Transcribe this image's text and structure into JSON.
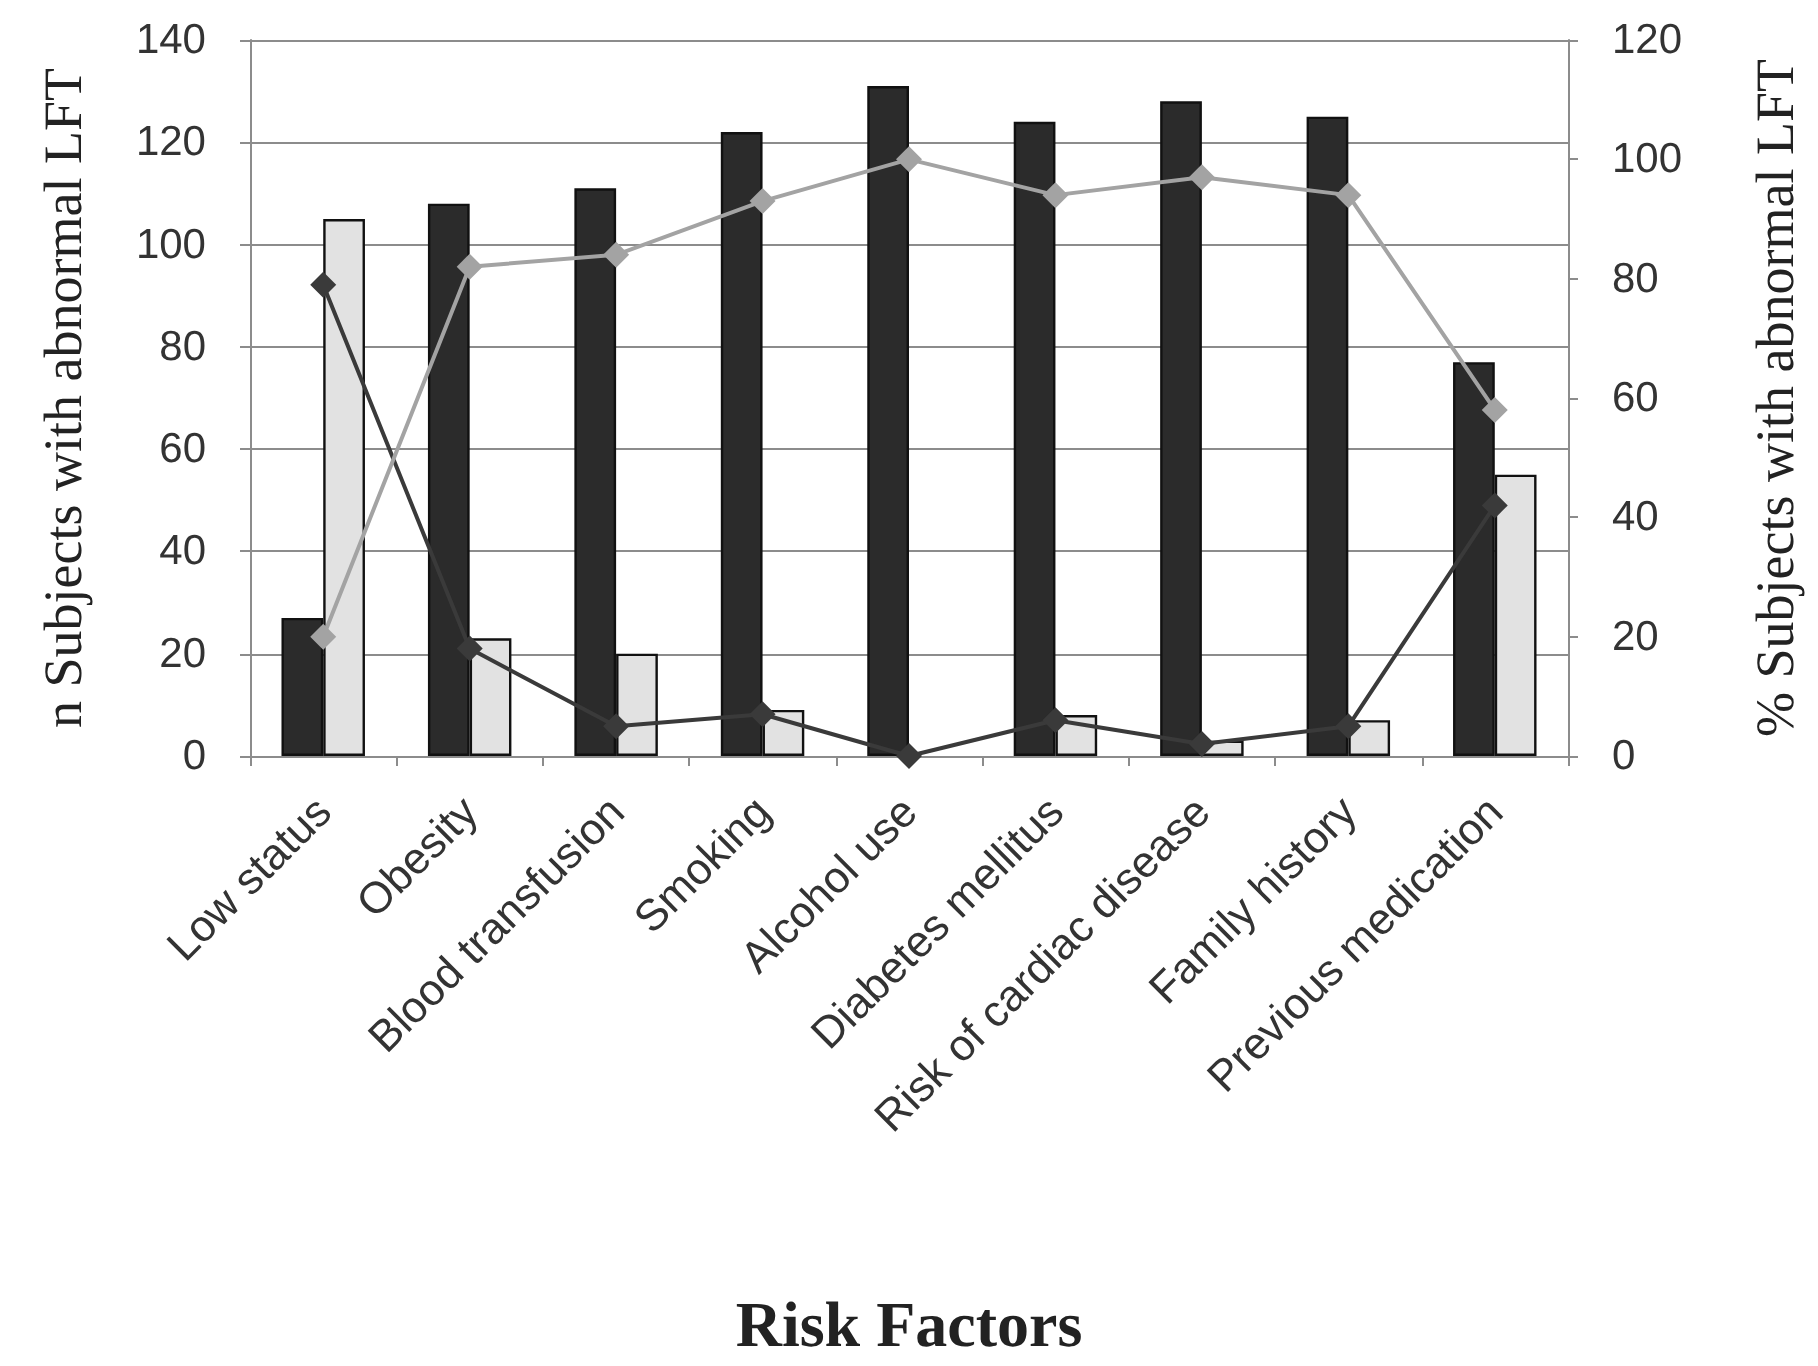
{
  "chart_data": {
    "type": "bar",
    "xlabel": "Risk Factors",
    "ylabel": "n Subjects with abnormal LFT",
    "y2label": "% Subjects with abnormal LFT",
    "categories": [
      "Low status",
      "Obesity",
      "Blood transfusion",
      "Smoking",
      "Alcohol use",
      "Diabetes mellitus",
      "Risk of cardiac disease",
      "Family history",
      "Previous medication"
    ],
    "series": [
      {
        "color": "#2b2b2b",
        "values": [
          27,
          108,
          111,
          122,
          131,
          124,
          128,
          125,
          77
        ]
      },
      {
        "color": "#e2e2e2",
        "values": [
          105,
          23,
          20,
          9,
          0,
          8,
          3,
          7,
          55
        ]
      },
      {
        "type": "line",
        "axis": "y2",
        "color": "#3a3a3a",
        "values": [
          79,
          18,
          5,
          7,
          0,
          6,
          2,
          5,
          42
        ]
      },
      {
        "type": "line",
        "axis": "y2",
        "color": "#a3a3a3",
        "values": [
          20,
          82,
          84,
          93,
          100,
          94,
          97,
          94,
          58
        ]
      }
    ],
    "ylim": [
      0,
      140
    ],
    "yticks": [
      0,
      20,
      40,
      60,
      80,
      100,
      120,
      140
    ],
    "y2lim": [
      0,
      120
    ],
    "y2ticks": [
      0,
      20,
      40,
      60,
      80,
      100,
      120
    ],
    "grid": "y",
    "marker": "diamond",
    "line_style": "solid"
  }
}
